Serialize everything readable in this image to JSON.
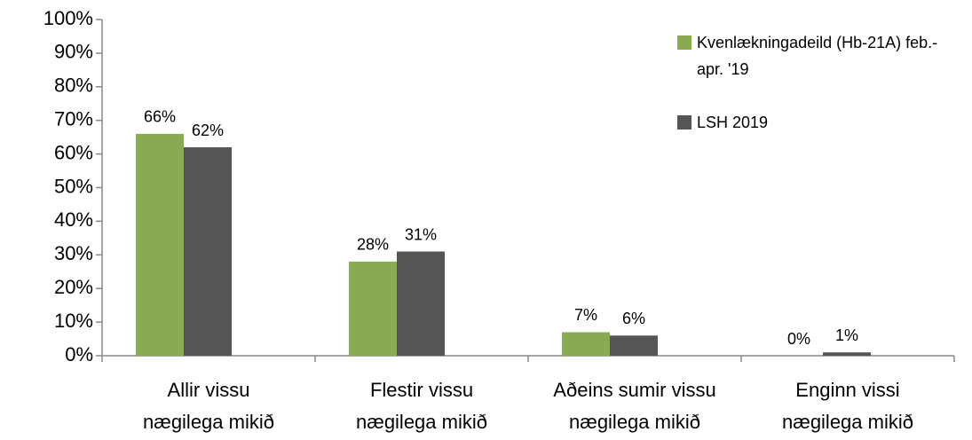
{
  "chart_data": {
    "type": "bar",
    "categories": [
      [
        "Allir vissu",
        "nægilega mikið"
      ],
      [
        "Flestir vissu",
        "nægilega mikið"
      ],
      [
        "Aðeins sumir vissu",
        "nægilega mikið"
      ],
      [
        "Enginn vissi",
        "nægilega mikið"
      ]
    ],
    "series": [
      {
        "name": "Kvenlækningadeild (Hb-21A) feb.-apr. '19",
        "color": "#8aaa52",
        "values": [
          66,
          28,
          7,
          0
        ],
        "value_labels": [
          "66%",
          "28%",
          "7%",
          "0%"
        ]
      },
      {
        "name": "LSH 2019",
        "color": "#555555",
        "values": [
          62,
          31,
          6,
          1
        ],
        "value_labels": [
          "62%",
          "31%",
          "6%",
          "1%"
        ]
      }
    ],
    "ylim": [
      0,
      100
    ],
    "yticks": [
      {
        "value": 0,
        "label": "0%"
      },
      {
        "value": 10,
        "label": "10%"
      },
      {
        "value": 20,
        "label": "20%"
      },
      {
        "value": 30,
        "label": "30%"
      },
      {
        "value": 40,
        "label": "40%"
      },
      {
        "value": 50,
        "label": "50%"
      },
      {
        "value": 60,
        "label": "60%"
      },
      {
        "value": 70,
        "label": "70%"
      },
      {
        "value": 80,
        "label": "80%"
      },
      {
        "value": 90,
        "label": "90%"
      },
      {
        "value": 100,
        "label": "100%"
      }
    ],
    "grid": false,
    "legend": "upper right"
  }
}
